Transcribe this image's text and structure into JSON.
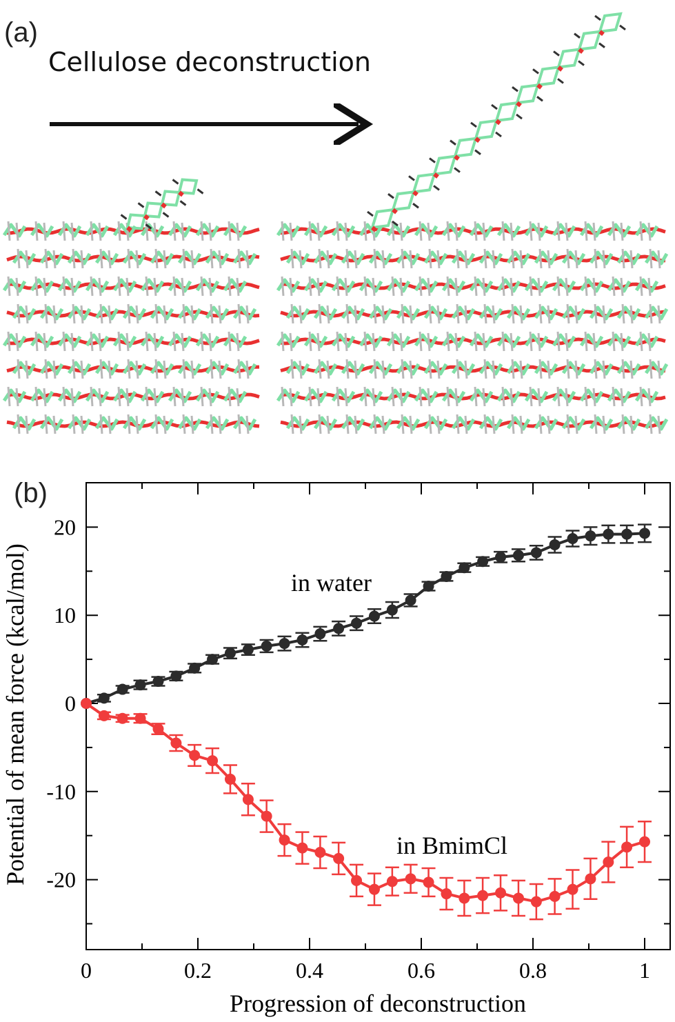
{
  "panel_a": {
    "label": "(a)",
    "title": "Cellulose deconstruction"
  },
  "colors": {
    "water": "#2b2b2b",
    "bmimcl": "#f03c3c",
    "cellulose_carbon": "#7fe0a6",
    "cellulose_oxygen": "#e83030",
    "cellulose_hydrogen": "#b8b8b8"
  },
  "chart_data": {
    "type": "line",
    "panel_label": "(b)",
    "xlabel": "Progression of deconstruction",
    "ylabel": "Potential of mean force (kcal/mol)",
    "xlim": [
      0,
      1.05
    ],
    "ylim": [
      -28,
      23
    ],
    "xticks": [
      0,
      0.2,
      0.4,
      0.6,
      0.8,
      1
    ],
    "xtick_labels": [
      "0",
      "0.2",
      "0.4",
      "0.6",
      "0.8",
      "1"
    ],
    "yticks": [
      -20,
      -10,
      0,
      10,
      20
    ],
    "ytick_labels": [
      "-20",
      "-10",
      "0",
      "10",
      "20"
    ],
    "series": [
      {
        "name": "in water",
        "color": "#2b2b2b",
        "x": [
          0,
          0.032,
          0.065,
          0.097,
          0.129,
          0.161,
          0.194,
          0.226,
          0.258,
          0.29,
          0.323,
          0.355,
          0.387,
          0.419,
          0.452,
          0.484,
          0.516,
          0.548,
          0.581,
          0.613,
          0.645,
          0.677,
          0.71,
          0.742,
          0.774,
          0.806,
          0.839,
          0.871,
          0.903,
          0.935,
          0.968,
          1.0
        ],
        "y": [
          0,
          0.6,
          1.6,
          2.1,
          2.5,
          3.1,
          4.0,
          5.0,
          5.7,
          6.1,
          6.5,
          6.8,
          7.2,
          7.9,
          8.5,
          9.1,
          9.9,
          10.6,
          11.7,
          13.3,
          14.4,
          15.4,
          16.1,
          16.6,
          16.8,
          17.1,
          18.0,
          18.7,
          19.0,
          19.2,
          19.2,
          19.3
        ],
        "err": [
          0,
          0.4,
          0.4,
          0.5,
          0.5,
          0.5,
          0.5,
          0.5,
          0.6,
          0.6,
          0.7,
          0.8,
          0.8,
          0.8,
          0.8,
          0.8,
          0.8,
          0.9,
          0.7,
          0.5,
          0.5,
          0.5,
          0.5,
          0.6,
          0.7,
          0.8,
          0.9,
          0.9,
          1.0,
          1.0,
          1.0,
          1.0
        ]
      },
      {
        "name": "in BmimCl",
        "color": "#f03c3c",
        "x": [
          0,
          0.032,
          0.065,
          0.097,
          0.129,
          0.161,
          0.194,
          0.226,
          0.258,
          0.29,
          0.323,
          0.355,
          0.387,
          0.419,
          0.452,
          0.484,
          0.516,
          0.548,
          0.581,
          0.613,
          0.645,
          0.677,
          0.71,
          0.742,
          0.774,
          0.806,
          0.839,
          0.871,
          0.903,
          0.935,
          0.968,
          1.0
        ],
        "y": [
          0,
          -1.4,
          -1.7,
          -1.7,
          -2.9,
          -4.5,
          -5.9,
          -6.5,
          -8.6,
          -10.9,
          -12.8,
          -15.5,
          -16.4,
          -16.9,
          -17.6,
          -20.1,
          -21.1,
          -20.2,
          -19.9,
          -20.3,
          -21.6,
          -22.1,
          -21.8,
          -21.5,
          -22.1,
          -22.5,
          -21.9,
          -21.1,
          -19.9,
          -18.0,
          -16.3,
          -15.7
        ],
        "err": [
          0,
          0.4,
          0.4,
          0.5,
          0.6,
          0.9,
          1.2,
          1.4,
          1.6,
          1.8,
          1.8,
          1.8,
          1.8,
          1.8,
          1.8,
          1.8,
          1.8,
          1.6,
          1.6,
          1.6,
          1.8,
          2.0,
          2.0,
          2.0,
          2.0,
          2.0,
          2.0,
          2.2,
          2.3,
          2.3,
          2.3,
          2.3
        ]
      }
    ],
    "annotations": [
      {
        "text": "in water",
        "series": "in water"
      },
      {
        "text": "in BmimCl",
        "series": "in BmimCl"
      }
    ]
  }
}
